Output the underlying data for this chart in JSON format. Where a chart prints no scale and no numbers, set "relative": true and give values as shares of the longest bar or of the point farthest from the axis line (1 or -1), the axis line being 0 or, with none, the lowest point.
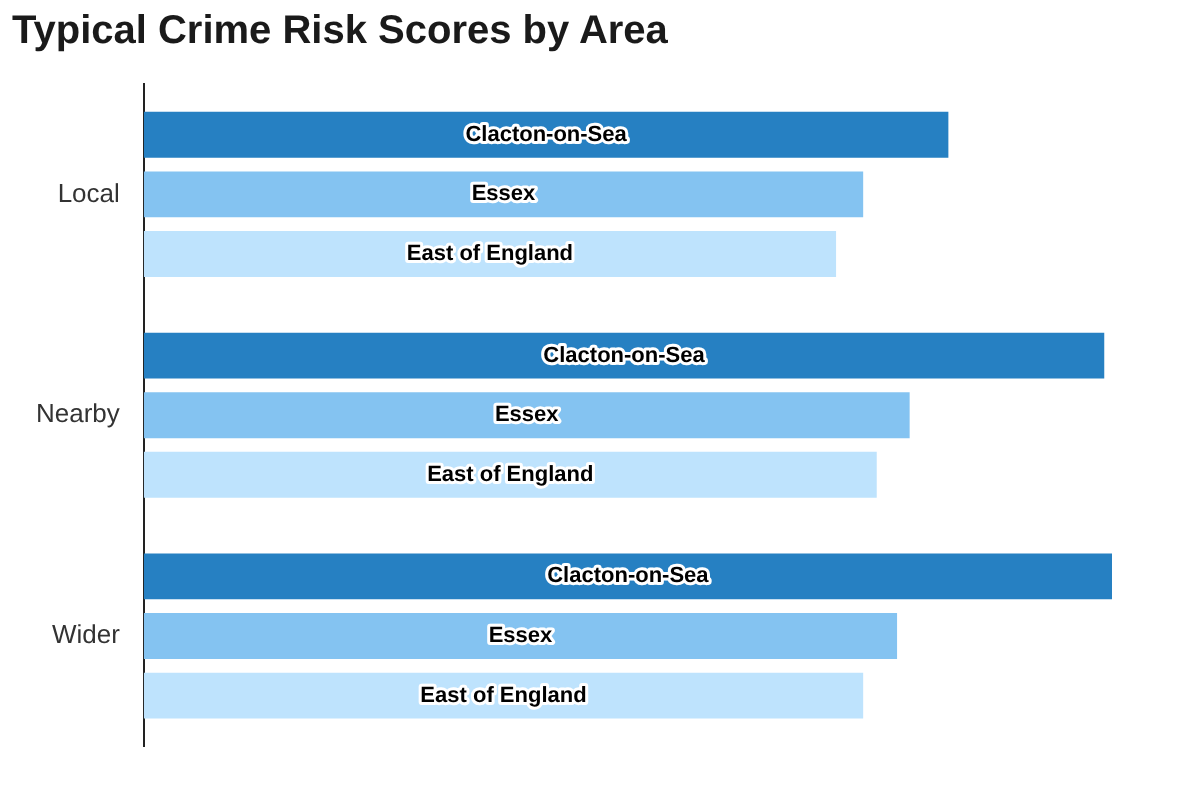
{
  "chart_data": {
    "type": "bar",
    "orientation": "horizontal",
    "relative": true,
    "title": "Typical Crime Risk Scores by Area",
    "categories": [
      "Local",
      "Nearby",
      "Wider"
    ],
    "grid": false,
    "legend": false,
    "series": [
      {
        "name": "Clacton-on-Sea",
        "color": "#2680c2",
        "values": [
          0.831,
          0.992,
          1
        ]
      },
      {
        "name": "Essex",
        "color": "#84c3f1",
        "values": [
          0.743,
          0.791,
          0.778
        ]
      },
      {
        "name": "East of England",
        "color": "#bee3fd",
        "values": [
          0.715,
          0.757,
          0.743
        ]
      }
    ]
  }
}
